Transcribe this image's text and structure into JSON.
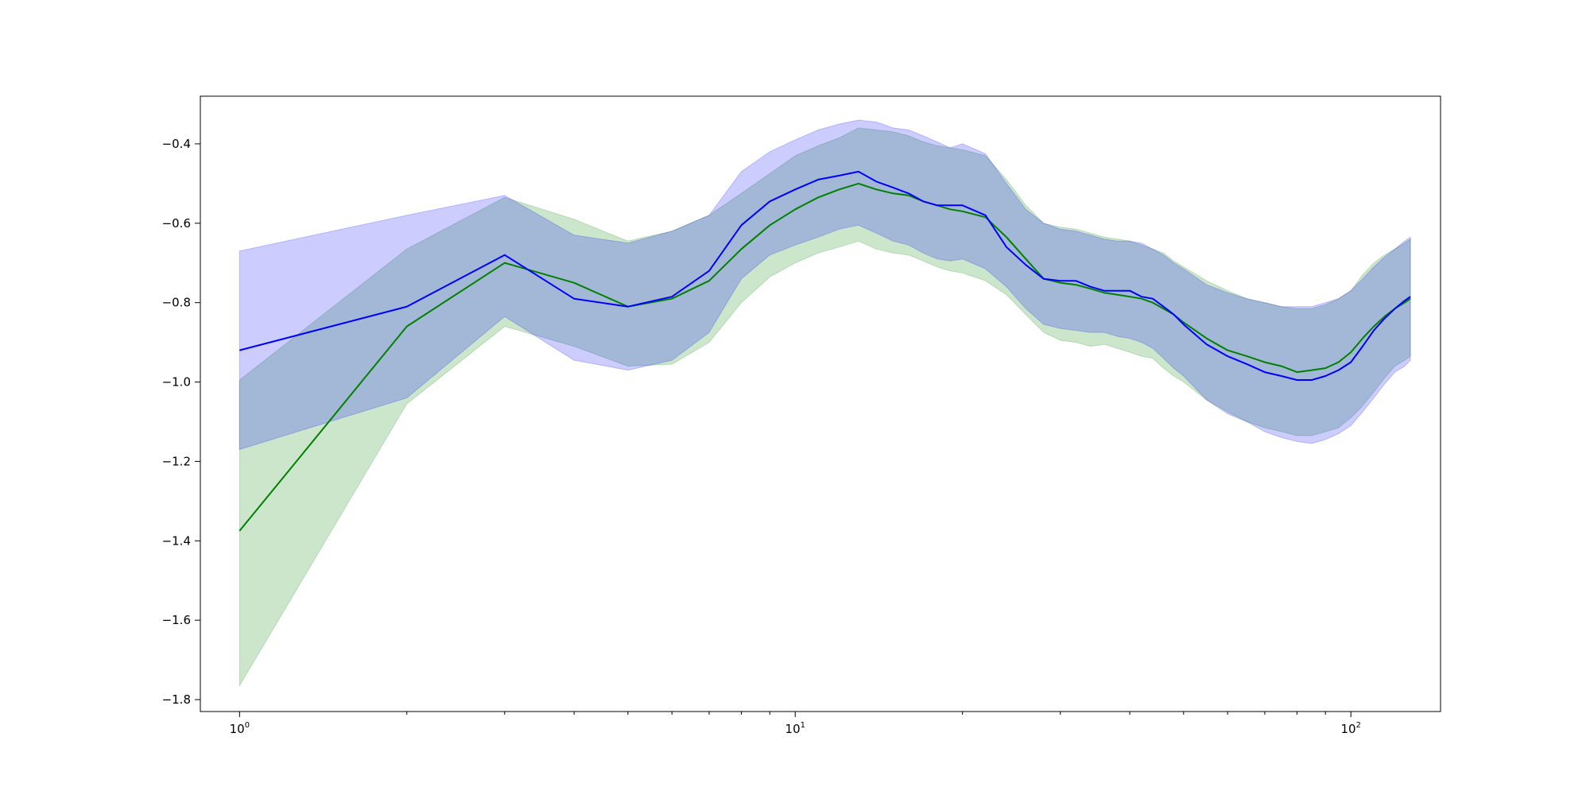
{
  "chart_data": {
    "type": "area",
    "title": "",
    "xlabel": "",
    "ylabel": "",
    "xscale": "log",
    "xlim": [
      0.85,
      145
    ],
    "ylim": [
      -1.83,
      -0.28
    ],
    "grid": false,
    "legend": "none",
    "x_ticks": [
      {
        "base": "10",
        "exp": "0",
        "value": 1
      },
      {
        "base": "10",
        "exp": "1",
        "value": 10
      },
      {
        "base": "10",
        "exp": "2",
        "value": 100
      }
    ],
    "y_ticks": [
      {
        "label": "−0.4",
        "value": -0.4
      },
      {
        "label": "−0.6",
        "value": -0.6
      },
      {
        "label": "−0.8",
        "value": -0.8
      },
      {
        "label": "−1.0",
        "value": -1.0
      },
      {
        "label": "−1.2",
        "value": -1.2
      },
      {
        "label": "−1.4",
        "value": -1.4
      },
      {
        "label": "−1.6",
        "value": -1.6
      },
      {
        "label": "−1.8",
        "value": -1.8
      }
    ],
    "series": [
      {
        "color": "#008000",
        "band_color": "#008000",
        "x": [
          1,
          2,
          3,
          4,
          5,
          6,
          7,
          8,
          9,
          10,
          11,
          12,
          13,
          14,
          15,
          16,
          17,
          18,
          19,
          20,
          22,
          24,
          26,
          28,
          30,
          32,
          34,
          36,
          38,
          40,
          42,
          44,
          46,
          48,
          50,
          55,
          60,
          65,
          70,
          75,
          80,
          85,
          90,
          95,
          100,
          105,
          110,
          115,
          120,
          125,
          128
        ],
        "mean": [
          -1.375,
          -0.86,
          -0.7,
          -0.75,
          -0.81,
          -0.79,
          -0.745,
          -0.665,
          -0.605,
          -0.565,
          -0.535,
          -0.515,
          -0.5,
          -0.515,
          -0.525,
          -0.53,
          -0.545,
          -0.555,
          -0.565,
          -0.57,
          -0.585,
          -0.635,
          -0.69,
          -0.74,
          -0.75,
          -0.755,
          -0.765,
          -0.775,
          -0.78,
          -0.785,
          -0.79,
          -0.8,
          -0.815,
          -0.83,
          -0.85,
          -0.89,
          -0.92,
          -0.935,
          -0.95,
          -0.96,
          -0.975,
          -0.97,
          -0.965,
          -0.95,
          -0.925,
          -0.89,
          -0.86,
          -0.835,
          -0.815,
          -0.8,
          -0.79
        ],
        "lower": [
          -1.765,
          -1.055,
          -0.86,
          -0.91,
          -0.96,
          -0.955,
          -0.9,
          -0.8,
          -0.735,
          -0.7,
          -0.675,
          -0.66,
          -0.645,
          -0.665,
          -0.675,
          -0.68,
          -0.695,
          -0.71,
          -0.72,
          -0.725,
          -0.745,
          -0.78,
          -0.83,
          -0.875,
          -0.895,
          -0.9,
          -0.91,
          -0.905,
          -0.915,
          -0.925,
          -0.935,
          -0.94,
          -0.965,
          -0.985,
          -1.0,
          -1.045,
          -1.075,
          -1.1,
          -1.115,
          -1.125,
          -1.135,
          -1.135,
          -1.125,
          -1.115,
          -1.09,
          -1.06,
          -1.025,
          -0.99,
          -0.96,
          -0.945,
          -0.935
        ],
        "upper": [
          -0.995,
          -0.665,
          -0.535,
          -0.59,
          -0.645,
          -0.62,
          -0.58,
          -0.525,
          -0.475,
          -0.43,
          -0.405,
          -0.385,
          -0.36,
          -0.365,
          -0.37,
          -0.38,
          -0.395,
          -0.405,
          -0.41,
          -0.415,
          -0.43,
          -0.49,
          -0.555,
          -0.6,
          -0.61,
          -0.615,
          -0.625,
          -0.635,
          -0.64,
          -0.645,
          -0.655,
          -0.665,
          -0.675,
          -0.695,
          -0.71,
          -0.745,
          -0.77,
          -0.79,
          -0.8,
          -0.81,
          -0.815,
          -0.815,
          -0.805,
          -0.79,
          -0.77,
          -0.73,
          -0.7,
          -0.68,
          -0.665,
          -0.65,
          -0.64
        ]
      },
      {
        "color": "#0000ff",
        "band_color": "#0000ff",
        "x": [
          1,
          2,
          3,
          4,
          5,
          6,
          7,
          8,
          9,
          10,
          11,
          12,
          13,
          14,
          15,
          16,
          17,
          18,
          19,
          20,
          22,
          24,
          26,
          28,
          30,
          32,
          34,
          36,
          38,
          40,
          42,
          44,
          46,
          48,
          50,
          55,
          60,
          65,
          70,
          75,
          80,
          85,
          90,
          95,
          100,
          105,
          110,
          115,
          120,
          125,
          128
        ],
        "mean": [
          -0.92,
          -0.81,
          -0.68,
          -0.79,
          -0.81,
          -0.785,
          -0.72,
          -0.605,
          -0.545,
          -0.515,
          -0.49,
          -0.48,
          -0.47,
          -0.495,
          -0.51,
          -0.525,
          -0.545,
          -0.555,
          -0.555,
          -0.555,
          -0.58,
          -0.66,
          -0.705,
          -0.74,
          -0.745,
          -0.745,
          -0.76,
          -0.77,
          -0.77,
          -0.77,
          -0.785,
          -0.79,
          -0.81,
          -0.83,
          -0.855,
          -0.905,
          -0.935,
          -0.955,
          -0.975,
          -0.985,
          -0.995,
          -0.995,
          -0.985,
          -0.97,
          -0.95,
          -0.91,
          -0.87,
          -0.84,
          -0.815,
          -0.795,
          -0.785
        ],
        "lower": [
          -1.17,
          -1.04,
          -0.835,
          -0.945,
          -0.97,
          -0.945,
          -0.875,
          -0.74,
          -0.68,
          -0.655,
          -0.635,
          -0.615,
          -0.605,
          -0.625,
          -0.645,
          -0.655,
          -0.675,
          -0.69,
          -0.695,
          -0.69,
          -0.715,
          -0.76,
          -0.815,
          -0.855,
          -0.865,
          -0.87,
          -0.875,
          -0.875,
          -0.885,
          -0.89,
          -0.9,
          -0.915,
          -0.94,
          -0.965,
          -0.985,
          -1.045,
          -1.08,
          -1.1,
          -1.125,
          -1.14,
          -1.15,
          -1.155,
          -1.145,
          -1.13,
          -1.11,
          -1.075,
          -1.04,
          -1.005,
          -0.975,
          -0.96,
          -0.945
        ],
        "upper": [
          -0.67,
          -0.58,
          -0.53,
          -0.63,
          -0.65,
          -0.62,
          -0.58,
          -0.47,
          -0.42,
          -0.39,
          -0.365,
          -0.35,
          -0.34,
          -0.345,
          -0.36,
          -0.365,
          -0.38,
          -0.395,
          -0.41,
          -0.4,
          -0.425,
          -0.5,
          -0.565,
          -0.6,
          -0.615,
          -0.62,
          -0.63,
          -0.64,
          -0.645,
          -0.645,
          -0.65,
          -0.665,
          -0.68,
          -0.7,
          -0.715,
          -0.755,
          -0.775,
          -0.79,
          -0.8,
          -0.81,
          -0.81,
          -0.81,
          -0.8,
          -0.79,
          -0.77,
          -0.74,
          -0.71,
          -0.685,
          -0.665,
          -0.645,
          -0.635
        ]
      }
    ]
  }
}
